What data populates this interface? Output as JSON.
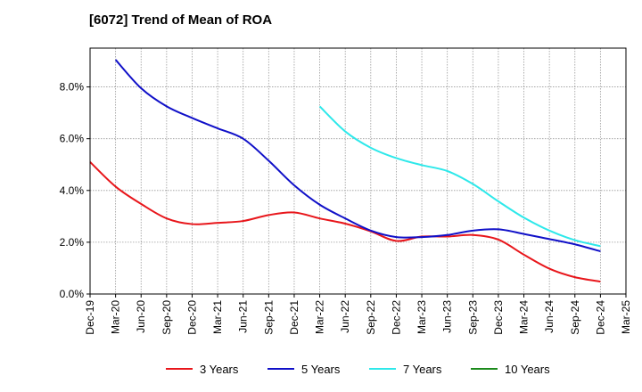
{
  "title": "[6072]  Trend of Mean of ROA",
  "chart_data": {
    "type": "line",
    "title": "[6072]  Trend of Mean of ROA",
    "xlabel": "",
    "ylabel": "",
    "x": [
      "Dec-19",
      "Mar-20",
      "Jun-20",
      "Sep-20",
      "Dec-20",
      "Mar-21",
      "Jun-21",
      "Sep-21",
      "Dec-21",
      "Mar-22",
      "Jun-22",
      "Sep-22",
      "Dec-22",
      "Mar-23",
      "Jun-23",
      "Sep-23",
      "Dec-23",
      "Mar-24",
      "Jun-24",
      "Sep-24",
      "Dec-24",
      "Mar-25"
    ],
    "ylim": [
      0,
      0.095
    ],
    "yticks": [
      0.0,
      0.02,
      0.04,
      0.06,
      0.08
    ],
    "ytick_labels": [
      "0.0%",
      "2.0%",
      "4.0%",
      "6.0%",
      "8.0%"
    ],
    "grid": true,
    "legend_position": "bottom",
    "series": [
      {
        "name": "3 Years",
        "color": "#e8161b",
        "values": [
          0.051,
          0.0415,
          0.0348,
          0.0292,
          0.027,
          0.0275,
          0.0282,
          0.0305,
          0.0315,
          0.0292,
          0.0272,
          0.0242,
          0.0205,
          0.0222,
          0.0222,
          0.0228,
          0.021,
          0.0152,
          0.0098,
          0.0065,
          0.0048,
          null
        ]
      },
      {
        "name": "5 Years",
        "color": "#1010c8",
        "values": [
          null,
          0.0905,
          0.0795,
          0.0725,
          0.068,
          0.064,
          0.06,
          0.0515,
          0.042,
          0.0345,
          0.0292,
          0.0245,
          0.022,
          0.022,
          0.0228,
          0.0245,
          0.025,
          0.0232,
          0.0212,
          0.0192,
          0.0165,
          null
        ]
      },
      {
        "name": "7 Years",
        "color": "#2ee8ea",
        "values": [
          null,
          null,
          null,
          null,
          null,
          null,
          null,
          null,
          null,
          0.0725,
          0.0628,
          0.0565,
          0.0525,
          0.0498,
          0.0475,
          0.0425,
          0.0358,
          0.0295,
          0.0245,
          0.0208,
          0.0185,
          null
        ]
      },
      {
        "name": "10 Years",
        "color": "#1c8a1c",
        "values": [
          null,
          null,
          null,
          null,
          null,
          null,
          null,
          null,
          null,
          null,
          null,
          null,
          null,
          null,
          null,
          null,
          null,
          null,
          null,
          null,
          null,
          null
        ]
      }
    ]
  }
}
